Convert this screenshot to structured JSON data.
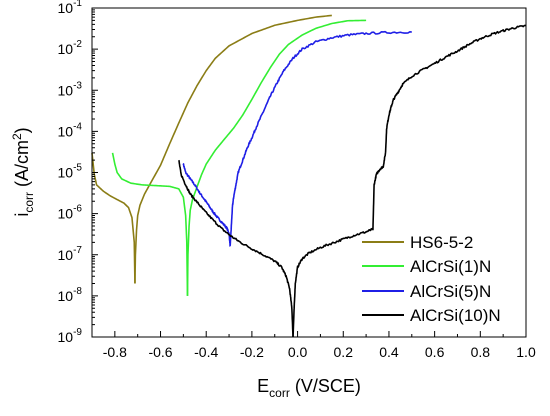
{
  "chart_data": {
    "type": "line",
    "xlabel": {
      "main": "E",
      "sub": "corr",
      "rest": " (V/SCE)"
    },
    "ylabel": {
      "main": "i",
      "sub": "corr",
      "rest": " (A/cm",
      "sup": "2",
      "close": ")"
    },
    "xlim": [
      -0.9,
      1.0
    ],
    "ylim": [
      1e-09,
      0.1
    ],
    "y_scale": "log",
    "x_ticks": [
      "-0.8",
      "-0.6",
      "-0.4",
      "-0.2",
      "0.0",
      "0.2",
      "0.4",
      "0.6",
      "0.8",
      "1.0"
    ],
    "x_tick_values": [
      -0.8,
      -0.6,
      -0.4,
      -0.2,
      0.0,
      0.2,
      0.4,
      0.6,
      0.8,
      1.0
    ],
    "y_ticks": [
      {
        "base": "10",
        "exp": "-9"
      },
      {
        "base": "10",
        "exp": "-8"
      },
      {
        "base": "10",
        "exp": "-7"
      },
      {
        "base": "10",
        "exp": "-6"
      },
      {
        "base": "10",
        "exp": "-5"
      },
      {
        "base": "10",
        "exp": "-4"
      },
      {
        "base": "10",
        "exp": "-3"
      },
      {
        "base": "10",
        "exp": "-2"
      },
      {
        "base": "10",
        "exp": "-1"
      }
    ],
    "y_tick_values": [
      1e-09,
      1e-08,
      1e-07,
      1e-06,
      1e-05,
      0.0001,
      0.001,
      0.01,
      0.1
    ],
    "grid": false,
    "legend_position": "bottom-right",
    "series": [
      {
        "name": "HS6-5-2",
        "color": "#8b7d16",
        "cathodic": [
          [
            -0.9,
            3e-05
          ],
          [
            -0.89,
            9e-06
          ],
          [
            -0.88,
            5e-06
          ],
          [
            -0.85,
            3.5e-06
          ],
          [
            -0.82,
            2.7e-06
          ],
          [
            -0.79,
            2.2e-06
          ],
          [
            -0.76,
            1.8e-06
          ],
          [
            -0.74,
            1.4e-06
          ],
          [
            -0.725,
            8e-07
          ],
          [
            -0.715,
            2e-07
          ],
          [
            -0.712,
            2e-08
          ]
        ],
        "anodic": [
          [
            -0.712,
            2e-08
          ],
          [
            -0.71,
            1e-07
          ],
          [
            -0.705,
            4e-07
          ],
          [
            -0.7,
            9e-07
          ],
          [
            -0.69,
            1.6e-06
          ],
          [
            -0.67,
            3e-06
          ],
          [
            -0.64,
            6e-06
          ],
          [
            -0.6,
            1.5e-05
          ],
          [
            -0.56,
            5e-05
          ],
          [
            -0.52,
            0.00016
          ],
          [
            -0.48,
            0.0005
          ],
          [
            -0.44,
            0.0013
          ],
          [
            -0.4,
            0.003
          ],
          [
            -0.36,
            0.006
          ],
          [
            -0.3,
            0.012
          ],
          [
            -0.2,
            0.024
          ],
          [
            -0.1,
            0.038
          ],
          [
            0.0,
            0.05
          ],
          [
            0.08,
            0.06
          ],
          [
            0.15,
            0.066
          ]
        ]
      },
      {
        "name": "AlCrSi(1)N",
        "color": "#33ee33",
        "cathodic": [
          [
            -0.81,
            3e-05
          ],
          [
            -0.8,
            1.6e-05
          ],
          [
            -0.79,
            1e-05
          ],
          [
            -0.77,
            7e-06
          ],
          [
            -0.73,
            5.5e-06
          ],
          [
            -0.68,
            5e-06
          ],
          [
            -0.62,
            4.8e-06
          ],
          [
            -0.56,
            4.6e-06
          ],
          [
            -0.52,
            4e-06
          ],
          [
            -0.5,
            2.5e-06
          ],
          [
            -0.49,
            9e-07
          ],
          [
            -0.485,
            2e-07
          ],
          [
            -0.482,
            1e-08
          ]
        ],
        "anodic": [
          [
            -0.482,
            1e-08
          ],
          [
            -0.48,
            1e-07
          ],
          [
            -0.475,
            5e-07
          ],
          [
            -0.47,
            1.2e-06
          ],
          [
            -0.46,
            2.2e-06
          ],
          [
            -0.44,
            4.5e-06
          ],
          [
            -0.42,
            9e-06
          ],
          [
            -0.4,
            1.6e-05
          ],
          [
            -0.36,
            3.5e-05
          ],
          [
            -0.32,
            6.5e-05
          ],
          [
            -0.28,
            0.00012
          ],
          [
            -0.24,
            0.00025
          ],
          [
            -0.2,
            0.0006
          ],
          [
            -0.16,
            0.0015
          ],
          [
            -0.12,
            0.0035
          ],
          [
            -0.08,
            0.0075
          ],
          [
            -0.04,
            0.013
          ],
          [
            0.02,
            0.022
          ],
          [
            0.08,
            0.032
          ],
          [
            0.15,
            0.042
          ],
          [
            0.22,
            0.049
          ],
          [
            0.3,
            0.05
          ]
        ]
      },
      {
        "name": "AlCrSi(5)N",
        "color": "#1f1fe6",
        "cathodic": [
          [
            -0.5,
            1.6e-05
          ],
          [
            -0.49,
            1e-05
          ],
          [
            -0.47,
            7e-06
          ],
          [
            -0.45,
            5e-06
          ],
          [
            -0.43,
            3.3e-06
          ],
          [
            -0.41,
            2.3e-06
          ],
          [
            -0.39,
            1.6e-06
          ],
          [
            -0.37,
            1.1e-06
          ],
          [
            -0.35,
            8e-07
          ],
          [
            -0.33,
            6e-07
          ],
          [
            -0.31,
            4.5e-07
          ],
          [
            -0.3,
            3.3e-07
          ],
          [
            -0.295,
            1.6e-07
          ]
        ],
        "anodic": [
          [
            -0.295,
            1.6e-07
          ],
          [
            -0.29,
            5e-07
          ],
          [
            -0.285,
            1.5e-06
          ],
          [
            -0.28,
            2.5e-06
          ],
          [
            -0.27,
            5e-06
          ],
          [
            -0.26,
            1e-05
          ],
          [
            -0.24,
            2e-05
          ],
          [
            -0.22,
            4e-05
          ],
          [
            -0.2,
            7e-05
          ],
          [
            -0.18,
            0.00013
          ],
          [
            -0.15,
            0.0003
          ],
          [
            -0.12,
            0.0007
          ],
          [
            -0.09,
            0.0015
          ],
          [
            -0.06,
            0.003
          ],
          [
            -0.02,
            0.006
          ],
          [
            0.02,
            0.01
          ],
          [
            0.08,
            0.015
          ],
          [
            0.15,
            0.019
          ],
          [
            0.22,
            0.022
          ],
          [
            0.3,
            0.024
          ],
          [
            0.4,
            0.0255
          ],
          [
            0.5,
            0.026
          ]
        ]
      },
      {
        "name": "AlCrSi(10)N",
        "color": "#000000",
        "cathodic": [
          [
            -0.52,
            2e-05
          ],
          [
            -0.51,
            9e-06
          ],
          [
            -0.49,
            5e-06
          ],
          [
            -0.47,
            3e-06
          ],
          [
            -0.44,
            1.9e-06
          ],
          [
            -0.41,
            1.2e-06
          ],
          [
            -0.37,
            7e-07
          ],
          [
            -0.33,
            4.2e-07
          ],
          [
            -0.29,
            2.8e-07
          ],
          [
            -0.25,
            2e-07
          ],
          [
            -0.2,
            1.4e-07
          ],
          [
            -0.15,
            1e-07
          ],
          [
            -0.1,
            7e-08
          ],
          [
            -0.07,
            5e-08
          ],
          [
            -0.05,
            3e-08
          ],
          [
            -0.035,
            1.5e-08
          ],
          [
            -0.025,
            5e-09
          ],
          [
            -0.02,
            1e-09
          ]
        ],
        "anodic": [
          [
            -0.02,
            1e-09
          ],
          [
            -0.015,
            5e-09
          ],
          [
            -0.01,
            2e-08
          ],
          [
            0.0,
            5e-08
          ],
          [
            0.02,
            8e-08
          ],
          [
            0.05,
            1.1e-07
          ],
          [
            0.1,
            1.5e-07
          ],
          [
            0.15,
            1.9e-07
          ],
          [
            0.2,
            2.4e-07
          ],
          [
            0.25,
            3e-07
          ],
          [
            0.3,
            3.6e-07
          ],
          [
            0.33,
            4.2e-07
          ],
          [
            0.335,
            5e-06
          ],
          [
            0.345,
            9e-06
          ],
          [
            0.36,
            1.2e-05
          ],
          [
            0.375,
            1.4e-05
          ],
          [
            0.385,
            3e-05
          ],
          [
            0.39,
            0.00012
          ],
          [
            0.4,
            0.00025
          ],
          [
            0.41,
            0.0004
          ],
          [
            0.42,
            0.0006
          ],
          [
            0.44,
            0.0009
          ],
          [
            0.46,
            0.0014
          ],
          [
            0.5,
            0.0022
          ],
          [
            0.55,
            0.0032
          ],
          [
            0.6,
            0.0045
          ],
          [
            0.65,
            0.0065
          ],
          [
            0.7,
            0.009
          ],
          [
            0.75,
            0.013
          ],
          [
            0.8,
            0.018
          ],
          [
            0.85,
            0.023
          ],
          [
            0.9,
            0.028
          ],
          [
            0.95,
            0.033
          ],
          [
            1.0,
            0.037
          ]
        ]
      }
    ]
  }
}
